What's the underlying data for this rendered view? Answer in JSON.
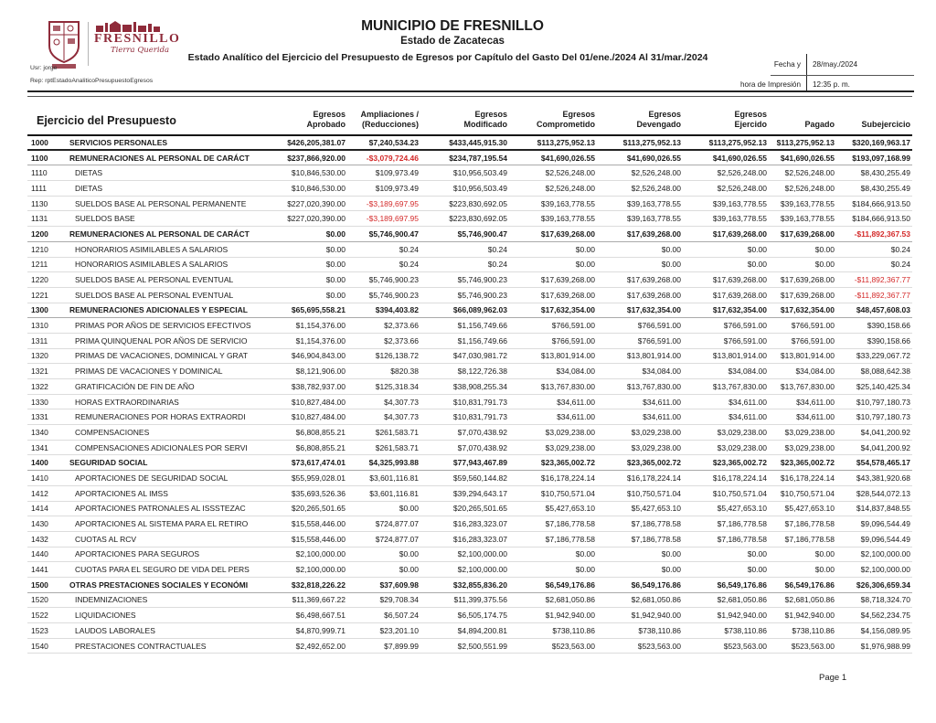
{
  "header": {
    "municipality": "MUNICIPIO DE FRESNILLO",
    "state": "Estado de Zacatecas",
    "report_title": "Estado Analítico del Ejercicio del Presupuesto de Egresos por Capítulo del Gasto Del 01/ene./2024 Al 31/mar./2024",
    "user_line": "Usr: jorge",
    "report_line": "Rep: rptEstadoAnaliticoPresupuestoEgresos",
    "logo_text": "FRESNILLO",
    "logo_slogan": "Tierra Querida",
    "date_label": "Fecha y",
    "time_label": "hora de Impresión",
    "date_value": "28/may./2024",
    "time_value": "12:35 p. m."
  },
  "colors": {
    "accent_maroon": "#8f2b3a",
    "negative_red": "#d42a2a"
  },
  "table": {
    "title_column": "Ejercicio del Presupuesto",
    "columns": [
      "Egresos\nAprobado",
      "Ampliaciones /\n(Reducciones)",
      "Egresos\nModificado",
      "Egresos\nComprometido",
      "Egresos\nDevengado",
      "Egresos\nEjercido",
      "Pagado",
      "Subejercicio"
    ],
    "rows": [
      {
        "code": "1000",
        "label": "SERVICIOS PERSONALES",
        "level": 1,
        "values": [
          "$426,205,381.07",
          "$7,240,534.23",
          "$433,445,915.30",
          "$113,275,952.13",
          "$113,275,952.13",
          "$113,275,952.13",
          "$113,275,952.13",
          "$320,169,963.17"
        ]
      },
      {
        "code": "1100",
        "label": "REMUNERACIONES AL PERSONAL DE CARÁCT",
        "level": 2,
        "values": [
          "$237,866,920.00",
          "-$3,079,724.46",
          "$234,787,195.54",
          "$41,690,026.55",
          "$41,690,026.55",
          "$41,690,026.55",
          "$41,690,026.55",
          "$193,097,168.99"
        ]
      },
      {
        "code": "1110",
        "label": "DIETAS",
        "level": 3,
        "values": [
          "$10,846,530.00",
          "$109,973.49",
          "$10,956,503.49",
          "$2,526,248.00",
          "$2,526,248.00",
          "$2,526,248.00",
          "$2,526,248.00",
          "$8,430,255.49"
        ]
      },
      {
        "code": "1111",
        "label": "DIETAS",
        "level": 3,
        "values": [
          "$10,846,530.00",
          "$109,973.49",
          "$10,956,503.49",
          "$2,526,248.00",
          "$2,526,248.00",
          "$2,526,248.00",
          "$2,526,248.00",
          "$8,430,255.49"
        ]
      },
      {
        "code": "1130",
        "label": "SUELDOS BASE AL PERSONAL PERMANENTE",
        "level": 3,
        "values": [
          "$227,020,390.00",
          "-$3,189,697.95",
          "$223,830,692.05",
          "$39,163,778.55",
          "$39,163,778.55",
          "$39,163,778.55",
          "$39,163,778.55",
          "$184,666,913.50"
        ]
      },
      {
        "code": "1131",
        "label": "SUELDOS BASE",
        "level": 3,
        "values": [
          "$227,020,390.00",
          "-$3,189,697.95",
          "$223,830,692.05",
          "$39,163,778.55",
          "$39,163,778.55",
          "$39,163,778.55",
          "$39,163,778.55",
          "$184,666,913.50"
        ]
      },
      {
        "code": "1200",
        "label": "REMUNERACIONES AL PERSONAL DE CARÁCT",
        "level": 2,
        "values": [
          "$0.00",
          "$5,746,900.47",
          "$5,746,900.47",
          "$17,639,268.00",
          "$17,639,268.00",
          "$17,639,268.00",
          "$17,639,268.00",
          "-$11,892,367.53"
        ]
      },
      {
        "code": "1210",
        "label": "HONORARIOS ASIMILABLES A SALARIOS",
        "level": 3,
        "values": [
          "$0.00",
          "$0.24",
          "$0.24",
          "$0.00",
          "$0.00",
          "$0.00",
          "$0.00",
          "$0.24"
        ]
      },
      {
        "code": "1211",
        "label": "HONORARIOS ASIMILABLES A SALARIOS",
        "level": 3,
        "values": [
          "$0.00",
          "$0.24",
          "$0.24",
          "$0.00",
          "$0.00",
          "$0.00",
          "$0.00",
          "$0.24"
        ]
      },
      {
        "code": "1220",
        "label": "SUELDOS BASE AL PERSONAL EVENTUAL",
        "level": 3,
        "values": [
          "$0.00",
          "$5,746,900.23",
          "$5,746,900.23",
          "$17,639,268.00",
          "$17,639,268.00",
          "$17,639,268.00",
          "$17,639,268.00",
          "-$11,892,367.77"
        ]
      },
      {
        "code": "1221",
        "label": "SUELDOS BASE AL PERSONAL EVENTUAL",
        "level": 3,
        "values": [
          "$0.00",
          "$5,746,900.23",
          "$5,746,900.23",
          "$17,639,268.00",
          "$17,639,268.00",
          "$17,639,268.00",
          "$17,639,268.00",
          "-$11,892,367.77"
        ]
      },
      {
        "code": "1300",
        "label": "REMUNERACIONES ADICIONALES Y ESPECIAL",
        "level": 2,
        "values": [
          "$65,695,558.21",
          "$394,403.82",
          "$66,089,962.03",
          "$17,632,354.00",
          "$17,632,354.00",
          "$17,632,354.00",
          "$17,632,354.00",
          "$48,457,608.03"
        ]
      },
      {
        "code": "1310",
        "label": "PRIMAS POR AÑOS DE SERVICIOS EFECTIVOS",
        "level": 3,
        "values": [
          "$1,154,376.00",
          "$2,373.66",
          "$1,156,749.66",
          "$766,591.00",
          "$766,591.00",
          "$766,591.00",
          "$766,591.00",
          "$390,158.66"
        ]
      },
      {
        "code": "1311",
        "label": "PRIMA QUINQUENAL POR AÑOS DE SERVICIO",
        "level": 3,
        "values": [
          "$1,154,376.00",
          "$2,373.66",
          "$1,156,749.66",
          "$766,591.00",
          "$766,591.00",
          "$766,591.00",
          "$766,591.00",
          "$390,158.66"
        ]
      },
      {
        "code": "1320",
        "label": "PRIMAS DE VACACIONES, DOMINICAL Y GRAT",
        "level": 3,
        "values": [
          "$46,904,843.00",
          "$126,138.72",
          "$47,030,981.72",
          "$13,801,914.00",
          "$13,801,914.00",
          "$13,801,914.00",
          "$13,801,914.00",
          "$33,229,067.72"
        ]
      },
      {
        "code": "1321",
        "label": "PRIMAS DE VACACIONES Y DOMINICAL",
        "level": 3,
        "values": [
          "$8,121,906.00",
          "$820.38",
          "$8,122,726.38",
          "$34,084.00",
          "$34,084.00",
          "$34,084.00",
          "$34,084.00",
          "$8,088,642.38"
        ]
      },
      {
        "code": "1322",
        "label": "GRATIFICACIÓN DE FIN DE AÑO",
        "level": 3,
        "values": [
          "$38,782,937.00",
          "$125,318.34",
          "$38,908,255.34",
          "$13,767,830.00",
          "$13,767,830.00",
          "$13,767,830.00",
          "$13,767,830.00",
          "$25,140,425.34"
        ]
      },
      {
        "code": "1330",
        "label": "HORAS EXTRAORDINARIAS",
        "level": 3,
        "values": [
          "$10,827,484.00",
          "$4,307.73",
          "$10,831,791.73",
          "$34,611.00",
          "$34,611.00",
          "$34,611.00",
          "$34,611.00",
          "$10,797,180.73"
        ]
      },
      {
        "code": "1331",
        "label": "REMUNERACIONES POR  HORAS EXTRAORDI",
        "level": 3,
        "values": [
          "$10,827,484.00",
          "$4,307.73",
          "$10,831,791.73",
          "$34,611.00",
          "$34,611.00",
          "$34,611.00",
          "$34,611.00",
          "$10,797,180.73"
        ]
      },
      {
        "code": "1340",
        "label": "COMPENSACIONES",
        "level": 3,
        "values": [
          "$6,808,855.21",
          "$261,583.71",
          "$7,070,438.92",
          "$3,029,238.00",
          "$3,029,238.00",
          "$3,029,238.00",
          "$3,029,238.00",
          "$4,041,200.92"
        ]
      },
      {
        "code": "1341",
        "label": "COMPENSACIONES ADICIONALES POR SERVI",
        "level": 3,
        "values": [
          "$6,808,855.21",
          "$261,583.71",
          "$7,070,438.92",
          "$3,029,238.00",
          "$3,029,238.00",
          "$3,029,238.00",
          "$3,029,238.00",
          "$4,041,200.92"
        ]
      },
      {
        "code": "1400",
        "label": "SEGURIDAD SOCIAL",
        "level": 2,
        "values": [
          "$73,617,474.01",
          "$4,325,993.88",
          "$77,943,467.89",
          "$23,365,002.72",
          "$23,365,002.72",
          "$23,365,002.72",
          "$23,365,002.72",
          "$54,578,465.17"
        ]
      },
      {
        "code": "1410",
        "label": "APORTACIONES DE SEGURIDAD SOCIAL",
        "level": 3,
        "values": [
          "$55,959,028.01",
          "$3,601,116.81",
          "$59,560,144.82",
          "$16,178,224.14",
          "$16,178,224.14",
          "$16,178,224.14",
          "$16,178,224.14",
          "$43,381,920.68"
        ]
      },
      {
        "code": "1412",
        "label": "APORTACIONES AL IMSS",
        "level": 3,
        "values": [
          "$35,693,526.36",
          "$3,601,116.81",
          "$39,294,643.17",
          "$10,750,571.04",
          "$10,750,571.04",
          "$10,750,571.04",
          "$10,750,571.04",
          "$28,544,072.13"
        ]
      },
      {
        "code": "1414",
        "label": "APORTACIONES  PATRONALES AL ISSSTEZAC",
        "level": 3,
        "values": [
          "$20,265,501.65",
          "$0.00",
          "$20,265,501.65",
          "$5,427,653.10",
          "$5,427,653.10",
          "$5,427,653.10",
          "$5,427,653.10",
          "$14,837,848.55"
        ]
      },
      {
        "code": "1430",
        "label": "APORTACIONES AL SISTEMA PARA EL RETIRO",
        "level": 3,
        "values": [
          "$15,558,446.00",
          "$724,877.07",
          "$16,283,323.07",
          "$7,186,778.58",
          "$7,186,778.58",
          "$7,186,778.58",
          "$7,186,778.58",
          "$9,096,544.49"
        ]
      },
      {
        "code": "1432",
        "label": "CUOTAS AL RCV",
        "level": 3,
        "values": [
          "$15,558,446.00",
          "$724,877.07",
          "$16,283,323.07",
          "$7,186,778.58",
          "$7,186,778.58",
          "$7,186,778.58",
          "$7,186,778.58",
          "$9,096,544.49"
        ]
      },
      {
        "code": "1440",
        "label": "APORTACIONES PARA SEGUROS",
        "level": 3,
        "values": [
          "$2,100,000.00",
          "$0.00",
          "$2,100,000.00",
          "$0.00",
          "$0.00",
          "$0.00",
          "$0.00",
          "$2,100,000.00"
        ]
      },
      {
        "code": "1441",
        "label": "CUOTAS PARA EL SEGURO DE VIDA DEL PERS",
        "level": 3,
        "values": [
          "$2,100,000.00",
          "$0.00",
          "$2,100,000.00",
          "$0.00",
          "$0.00",
          "$0.00",
          "$0.00",
          "$2,100,000.00"
        ]
      },
      {
        "code": "1500",
        "label": "OTRAS PRESTACIONES SOCIALES Y ECONÓMI",
        "level": 2,
        "values": [
          "$32,818,226.22",
          "$37,609.98",
          "$32,855,836.20",
          "$6,549,176.86",
          "$6,549,176.86",
          "$6,549,176.86",
          "$6,549,176.86",
          "$26,306,659.34"
        ]
      },
      {
        "code": "1520",
        "label": "INDEMNIZACIONES",
        "level": 3,
        "values": [
          "$11,369,667.22",
          "$29,708.34",
          "$11,399,375.56",
          "$2,681,050.86",
          "$2,681,050.86",
          "$2,681,050.86",
          "$2,681,050.86",
          "$8,718,324.70"
        ]
      },
      {
        "code": "1522",
        "label": "LIQUIDACIONES",
        "level": 3,
        "values": [
          "$6,498,667.51",
          "$6,507.24",
          "$6,505,174.75",
          "$1,942,940.00",
          "$1,942,940.00",
          "$1,942,940.00",
          "$1,942,940.00",
          "$4,562,234.75"
        ]
      },
      {
        "code": "1523",
        "label": "LAUDOS LABORALES",
        "level": 3,
        "values": [
          "$4,870,999.71",
          "$23,201.10",
          "$4,894,200.81",
          "$738,110.86",
          "$738,110.86",
          "$738,110.86",
          "$738,110.86",
          "$4,156,089.95"
        ]
      },
      {
        "code": "1540",
        "label": "PRESTACIONES CONTRACTUALES",
        "level": 3,
        "values": [
          "$2,492,652.00",
          "$7,899.99",
          "$2,500,551.99",
          "$523,563.00",
          "$523,563.00",
          "$523,563.00",
          "$523,563.00",
          "$1,976,988.99"
        ]
      }
    ]
  },
  "footer": {
    "page_label": "Page 1"
  }
}
